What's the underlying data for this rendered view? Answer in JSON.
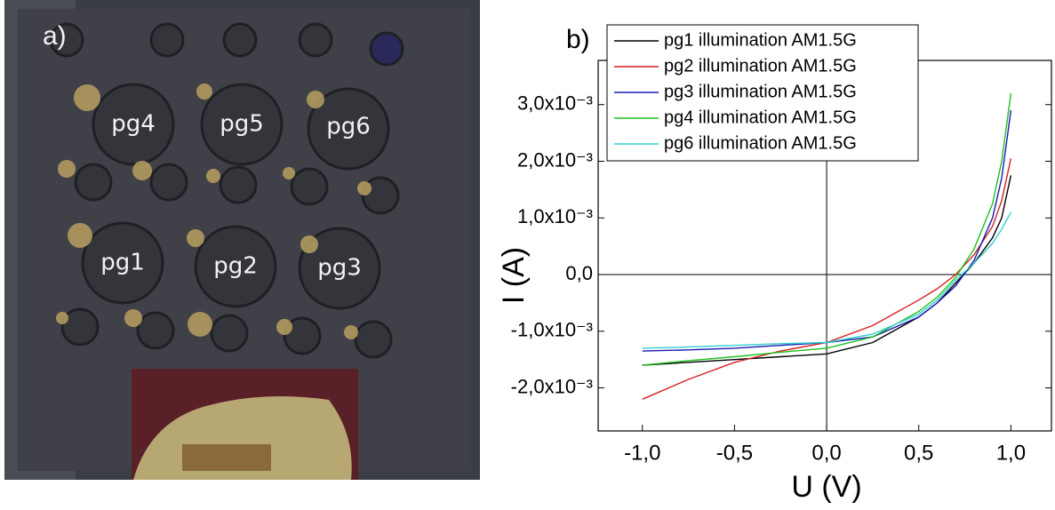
{
  "panel_a": {
    "label": "a)",
    "pads": [
      "pg4",
      "pg5",
      "pg6",
      "pg1",
      "pg2",
      "pg3"
    ]
  },
  "chart_data": {
    "type": "line",
    "panel_label": "b)",
    "x_label": "U (V)",
    "y_label": "I (A)",
    "x": [
      -1.0,
      -0.75,
      -0.5,
      -0.25,
      0.0,
      0.25,
      0.5,
      0.6,
      0.7,
      0.8,
      0.9,
      0.95,
      1.0
    ],
    "series": [
      {
        "name": "pg1 illumination AM1.5G",
        "color": "#000000",
        "values": [
          -0.0016,
          -0.00155,
          -0.0015,
          -0.00145,
          -0.0014,
          -0.0012,
          -0.00075,
          -0.0005,
          -0.00015,
          0.0002,
          0.00065,
          0.001,
          0.00175
        ]
      },
      {
        "name": "pg2 illumination AM1.5G",
        "color": "#d62020",
        "values": [
          -0.0022,
          -0.00185,
          -0.00155,
          -0.00135,
          -0.0012,
          -0.0009,
          -0.00045,
          -0.00025,
          0.0,
          0.00035,
          0.00085,
          0.0013,
          0.00205
        ]
      },
      {
        "name": "pg3 illumination AM1.5G",
        "color": "#1a1ab4",
        "values": [
          -0.00135,
          -0.00133,
          -0.0013,
          -0.00125,
          -0.0012,
          -0.0011,
          -0.00075,
          -0.0005,
          -0.0002,
          0.00025,
          0.001,
          0.0017,
          0.0029
        ]
      },
      {
        "name": "pg4 illumination AM1.5G",
        "color": "#20c020",
        "values": [
          -0.0016,
          -0.00152,
          -0.00145,
          -0.00137,
          -0.0013,
          -0.0011,
          -0.00065,
          -0.0004,
          -5e-05,
          0.00045,
          0.00125,
          0.002,
          0.0032
        ]
      },
      {
        "name": "pg6 illumination AM1.5G",
        "color": "#30d0d0",
        "values": [
          -0.0013,
          -0.00128,
          -0.00125,
          -0.00122,
          -0.0012,
          -0.00105,
          -0.0007,
          -0.00045,
          -0.0001,
          0.0002,
          0.00055,
          0.0008,
          0.0011
        ]
      }
    ],
    "xlim": [
      -1.24,
      1.22
    ],
    "ylim": [
      -0.00276,
      0.00378
    ],
    "xticks": [
      {
        "value": -1.0,
        "label": "-1,0"
      },
      {
        "value": -0.5,
        "label": "-0,5"
      },
      {
        "value": 0.0,
        "label": "0,0"
      },
      {
        "value": 0.5,
        "label": "0,5"
      },
      {
        "value": 1.0,
        "label": "1,0"
      }
    ],
    "yticks": [
      {
        "value": -0.002,
        "label": "-2,0x10⁻³"
      },
      {
        "value": -0.001,
        "label": "-1,0x10⁻³"
      },
      {
        "value": 0.0,
        "label": "0,0"
      },
      {
        "value": 0.001,
        "label": "1,0x10⁻³"
      },
      {
        "value": 0.002,
        "label": "2,0x10⁻³"
      },
      {
        "value": 0.003,
        "label": "3,0x10⁻³"
      }
    ],
    "legend": "upper left"
  }
}
